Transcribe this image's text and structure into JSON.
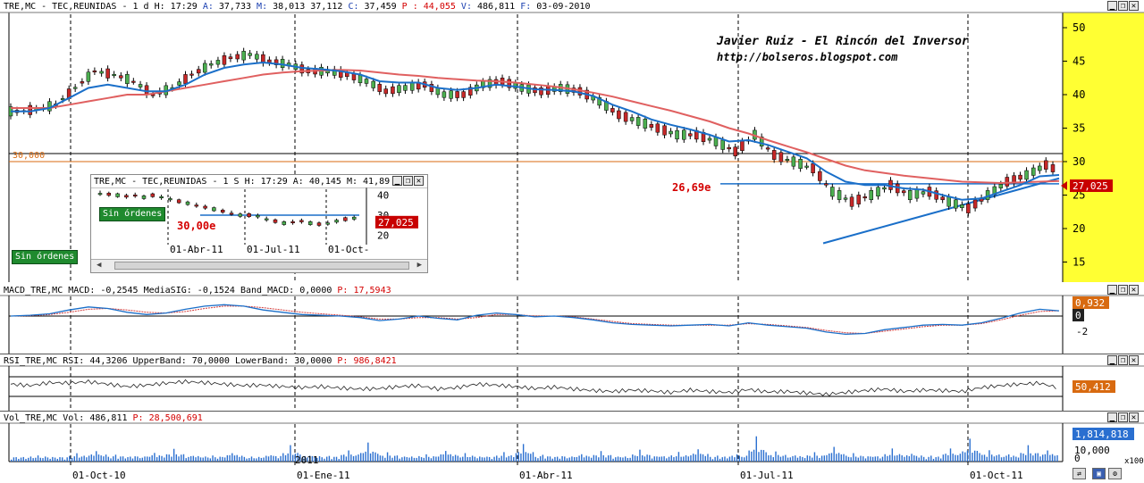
{
  "main_header": {
    "symbol": "TRE,MC - TEC,REUNIDAS - 1 d",
    "h_label": "H:",
    "h_value": "17:29",
    "a_label": "A:",
    "a_value": "37,733",
    "m_label": "M:",
    "m_value": "38,013",
    "m2_value": "37,112",
    "c_label": "C:",
    "c_value": "37,459",
    "p_label": "P :",
    "p_value": "44,055",
    "v_label": "V:",
    "v_value": "486,811",
    "f_label": "F:",
    "f_value": "03-09-2010"
  },
  "watermark": {
    "line1": "Javier Ruiz - El Rincón del Inversor",
    "line2": "http://bolseros.blogspot.com"
  },
  "annotations": {
    "level_26": "26,69e",
    "hline_30": "30,000",
    "sin_ordenes": "Sin órdenes"
  },
  "price_tag": "27,025",
  "inset": {
    "header": "TRE,MC - TEC,REUNIDAS - 1 S H: 17:29 A: 40,145 M: 41,89",
    "level": "30,00e",
    "price_tag": "27,025",
    "sin_ordenes": "Sin órdenes",
    "x_ticks": [
      "01-Abr-11",
      "01-Jul-11",
      "01-Oct-"
    ],
    "y_ticks": [
      "40",
      "30",
      "20"
    ]
  },
  "macd_header": {
    "name": "MACD_TRE,MC MACD:",
    "macd": "-0,2545",
    "sig_label": "MediaSIG:",
    "sig": "-0,1524",
    "band_label": "Band_MACD:",
    "band": "0,0000",
    "p_label": "P:",
    "p": "17,5943",
    "tag1": "0,932",
    "tag2": "0",
    "y_ticks": [
      "2",
      "0",
      "-2"
    ]
  },
  "rsi_header": {
    "name": "RSI_TRE,MC RSI:",
    "rsi": "44,3206",
    "upper_label": "UpperBand:",
    "upper": "70,0000",
    "lower_label": "LowerBand:",
    "lower": "30,0000",
    "p_label": "P:",
    "p": "986,8421",
    "tag": "50,412"
  },
  "vol_header": {
    "name": "Vol_TRE,MC Vol:",
    "vol": "486,811",
    "p_label": "P:",
    "p": "28,500,691",
    "tag": "1,814,818",
    "y_ticks": [
      "10,000",
      "0"
    ],
    "multiplier": "x100"
  },
  "chart_data": {
    "type": "line",
    "title": "TRE,MC - TEC,REUNIDAS - 1 d",
    "x_ticks": [
      "01-Oct-10",
      "01-Ene-11",
      "01-Abr-11",
      "01-Jul-11",
      "01-Oct-11"
    ],
    "year_marker": "2011",
    "y_ticks": [
      50,
      45,
      40,
      35,
      30,
      25,
      20,
      15
    ],
    "ylim": [
      12,
      52
    ],
    "series": [
      {
        "name": "price",
        "values": [
          37.5,
          37.8,
          38.5,
          41,
          43.5,
          43,
          42,
          40,
          41,
          43,
          44.5,
          45.5,
          46,
          45,
          44.5,
          43.5,
          43.5,
          43,
          42,
          40.5,
          41,
          41.5,
          40,
          40,
          41.5,
          42,
          41,
          40.5,
          41,
          40.5,
          39,
          37,
          36,
          35,
          34,
          34,
          33,
          31.5,
          34,
          31,
          30,
          29,
          25.5,
          24,
          25,
          26.5,
          25,
          25.5,
          24,
          23,
          25,
          27,
          28,
          29.5,
          28
        ]
      },
      {
        "name": "media-corta",
        "values": [
          37.5,
          37.5,
          38,
          39.5,
          41,
          41.5,
          41,
          40.5,
          40.5,
          41.5,
          43,
          44,
          44.5,
          44.8,
          44.5,
          44,
          43.8,
          43.5,
          43,
          42,
          41.8,
          41.8,
          41,
          40.7,
          41,
          41.5,
          41.2,
          40.8,
          40.7,
          40.5,
          39.8,
          38.5,
          37.5,
          36.3,
          35.5,
          34.8,
          34,
          33,
          33.2,
          32.5,
          31.5,
          30.5,
          28.5,
          27,
          26.5,
          26.5,
          26,
          25.8,
          25,
          24.3,
          24.5,
          25.5,
          26.5,
          27.8,
          28
        ]
      },
      {
        "name": "media-larga",
        "values": [
          38,
          38,
          38,
          38.5,
          39,
          39.5,
          40,
          40,
          40.5,
          41,
          41.5,
          42,
          42.5,
          43,
          43.3,
          43.5,
          43.6,
          43.7,
          43.6,
          43.3,
          43,
          42.8,
          42.5,
          42.3,
          42.1,
          42,
          41.8,
          41.5,
          41.2,
          40.8,
          40.3,
          39.7,
          39,
          38.3,
          37.6,
          36.8,
          36,
          35,
          34.2,
          33.2,
          32.3,
          31.4,
          30.4,
          29.4,
          28.7,
          28.3,
          27.9,
          27.6,
          27.3,
          27,
          26.9,
          26.8,
          26.9,
          27,
          27.1
        ]
      }
    ],
    "levels": [
      {
        "label": "30,000",
        "value": 30
      },
      {
        "label": "26,69e",
        "value": 26.69
      }
    ],
    "trendline": [
      [
        21.5,
        43
      ],
      [
        27.5,
        54
      ]
    ],
    "macd": {
      "values": [
        0,
        0.1,
        0.3,
        0.8,
        1.2,
        1.0,
        0.5,
        0.2,
        0.4,
        0.9,
        1.3,
        1.5,
        1.3,
        0.8,
        0.5,
        0.2,
        0.1,
        0,
        -0.2,
        -0.6,
        -0.4,
        0,
        -0.3,
        -0.5,
        0.1,
        0.4,
        0.2,
        -0.1,
        0,
        -0.2,
        -0.5,
        -0.9,
        -1.1,
        -1.2,
        -1.3,
        -1.2,
        -1.1,
        -1.3,
        -0.9,
        -1.2,
        -1.4,
        -1.6,
        -2.1,
        -2.4,
        -2.3,
        -1.8,
        -1.5,
        -1.2,
        -1.1,
        -1.2,
        -0.9,
        -0.3,
        0.4,
        0.9,
        0.7
      ],
      "signal": [
        0,
        0.05,
        0.2,
        0.5,
        0.9,
        1.0,
        0.8,
        0.5,
        0.4,
        0.6,
        1.0,
        1.3,
        1.3,
        1.1,
        0.8,
        0.5,
        0.3,
        0.1,
        -0.1,
        -0.4,
        -0.4,
        -0.2,
        -0.2,
        -0.4,
        -0.2,
        0.2,
        0.2,
        0.0,
        0,
        -0.1,
        -0.4,
        -0.7,
        -1.0,
        -1.1,
        -1.2,
        -1.2,
        -1.2,
        -1.2,
        -1.0,
        -1.1,
        -1.3,
        -1.5,
        -1.9,
        -2.2,
        -2.3,
        -2.0,
        -1.7,
        -1.4,
        -1.2,
        -1.2,
        -1.0,
        -0.5,
        0.1,
        0.6,
        0.7
      ]
    },
    "rsi": {
      "values": [
        55,
        52,
        58,
        57,
        60,
        55,
        50,
        53,
        57,
        60,
        58,
        55,
        52,
        53,
        50,
        48,
        50,
        47,
        45,
        46,
        50,
        52,
        45,
        48,
        55,
        53,
        50,
        46,
        49,
        45,
        42,
        40,
        43,
        41,
        38,
        43,
        40,
        38,
        44,
        39,
        40,
        37,
        34,
        38,
        42,
        45,
        40,
        43,
        42,
        40,
        48,
        52,
        55,
        57,
        47
      ]
    },
    "volume": {
      "values": [
        2,
        3,
        2,
        5,
        8,
        4,
        3,
        6,
        9,
        4,
        3,
        7,
        2,
        5,
        12,
        4,
        3,
        8,
        15,
        6,
        3,
        4,
        9,
        5,
        3,
        6,
        14,
        4,
        3,
        5,
        7,
        3,
        8,
        4,
        6,
        10,
        3,
        5,
        20,
        7,
        4,
        6,
        12,
        5,
        4,
        9,
        6,
        3,
        10,
        18,
        8,
        5,
        12,
        9,
        22
      ]
    }
  }
}
